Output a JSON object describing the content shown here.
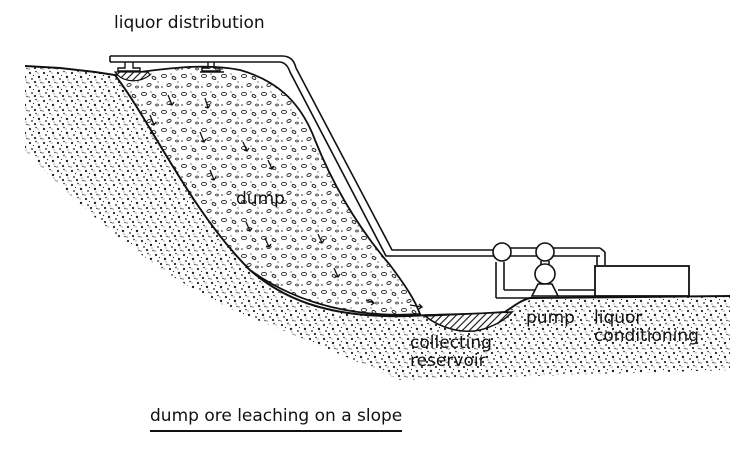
{
  "labels": {
    "liquor_distribution": "liquor distribution",
    "dump": "dump",
    "pump": "pump",
    "liquor_conditioning_line1": "liquor",
    "liquor_conditioning_line2": "conditioning",
    "collecting_reservoir_line1": "collecting",
    "collecting_reservoir_line2": "reservoir"
  },
  "caption": "dump ore leaching on a slope",
  "colors": {
    "ink": "#111111",
    "background": "#ffffff"
  }
}
